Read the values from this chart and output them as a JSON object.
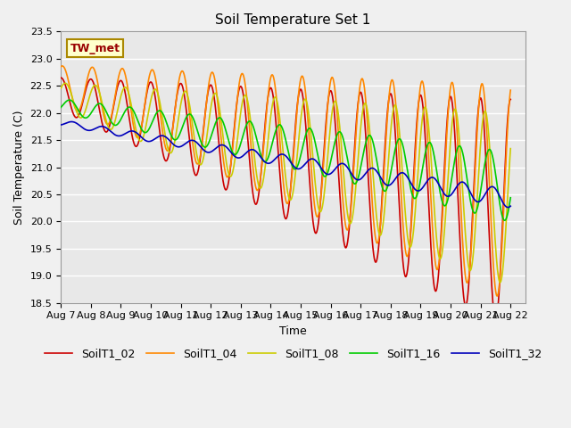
{
  "title": "Soil Temperature Set 1",
  "ylabel": "Soil Temperature (C)",
  "xlabel": "Time",
  "annotation": "TW_met",
  "ylim": [
    18.5,
    23.5
  ],
  "yticks": [
    18.5,
    19.0,
    19.5,
    20.0,
    20.5,
    21.0,
    21.5,
    22.0,
    22.5,
    23.0,
    23.5
  ],
  "xlim_start": 0,
  "xlim_end": 15.5,
  "series": {
    "SoilT1_02": {
      "color": "#cc0000",
      "lw": 1.2
    },
    "SoilT1_04": {
      "color": "#ff8800",
      "lw": 1.2
    },
    "SoilT1_08": {
      "color": "#cccc00",
      "lw": 1.2
    },
    "SoilT1_16": {
      "color": "#00cc00",
      "lw": 1.2
    },
    "SoilT1_32": {
      "color": "#0000bb",
      "lw": 1.2
    }
  },
  "bg_color": "#e8e8e8",
  "grid_color": "#ffffff",
  "fig_bg_color": "#f0f0f0",
  "xtick_labels": [
    "Aug 7",
    "Aug 8",
    "Aug 9",
    "Aug 10",
    "Aug 11",
    "Aug 12",
    "Aug 13",
    "Aug 14",
    "Aug 15",
    "Aug 16",
    "Aug 17",
    "Aug 18",
    "Aug 19",
    "Aug 20",
    "Aug 21",
    "Aug 22"
  ],
  "title_fontsize": 11,
  "axis_fontsize": 9,
  "tick_fontsize": 8,
  "legend_fontsize": 9,
  "annotation_fontsize": 9
}
